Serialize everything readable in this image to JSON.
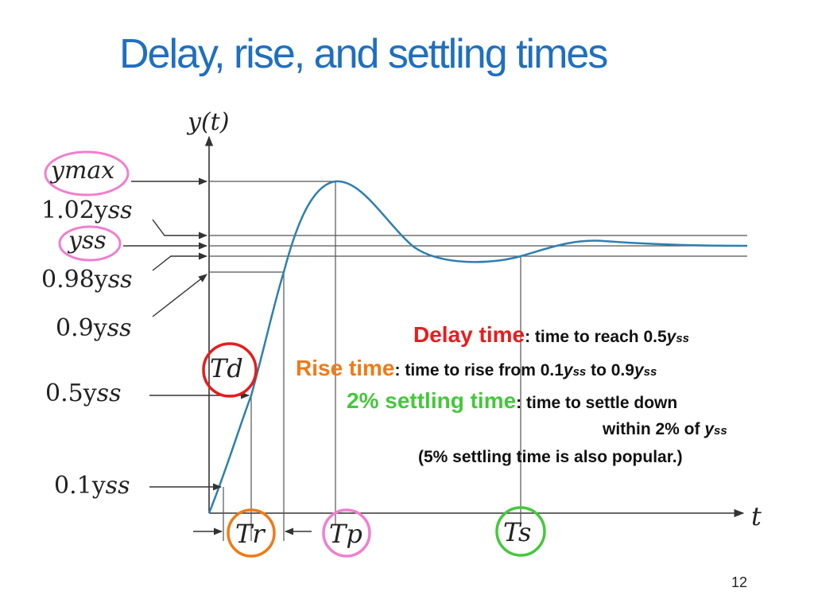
{
  "slide": {
    "title": "Delay, rise, and settling times",
    "page_number": "12"
  },
  "axes": {
    "y_label": "y(t)",
    "x_label": "t"
  },
  "levels": {
    "y_max": "y",
    "y_max_sub": "max",
    "upper_band": "1.02y",
    "upper_band_sub": "ss",
    "steady_state": "y",
    "steady_state_sub": "ss",
    "lower_band": "0.98y",
    "lower_band_sub": "ss",
    "ninety": "0.9y",
    "ninety_sub": "ss",
    "fifty": "0.5y",
    "fifty_sub": "ss",
    "ten": "0.1y",
    "ten_sub": "ss"
  },
  "times": {
    "delay": "T",
    "delay_sub": "d",
    "rise": "T",
    "rise_sub": "r",
    "peak": "T",
    "peak_sub": "p",
    "settling": "T",
    "settling_sub": "s"
  },
  "legend": {
    "delay_head": "Delay time",
    "delay_desc": ": time to reach 0.5",
    "delay_sym": "y",
    "delay_sym_sub": "ss",
    "rise_head": "Rise time",
    "rise_desc": ": time to rise from 0.1",
    "rise_sym": "y",
    "rise_sym_sub": "ss",
    "rise_to": " to 0.9",
    "rise_sym2": "y",
    "rise_sym2_sub": "ss",
    "settle_head": "2% settling time",
    "settle_desc": ": time to settle down",
    "settle_desc2": "within 2% of ",
    "settle_sym": "y",
    "settle_sym_sub": "ss",
    "note": "(5% settling time is also popular.)"
  },
  "colors": {
    "title": "#1f6fc0",
    "curve": "#2e7fb0",
    "delay": "#e81c1c",
    "rise": "#f07a16",
    "settling": "#44c83c",
    "peak_circle": "#f07fd0",
    "ymax_circle": "#f07fd0"
  }
}
